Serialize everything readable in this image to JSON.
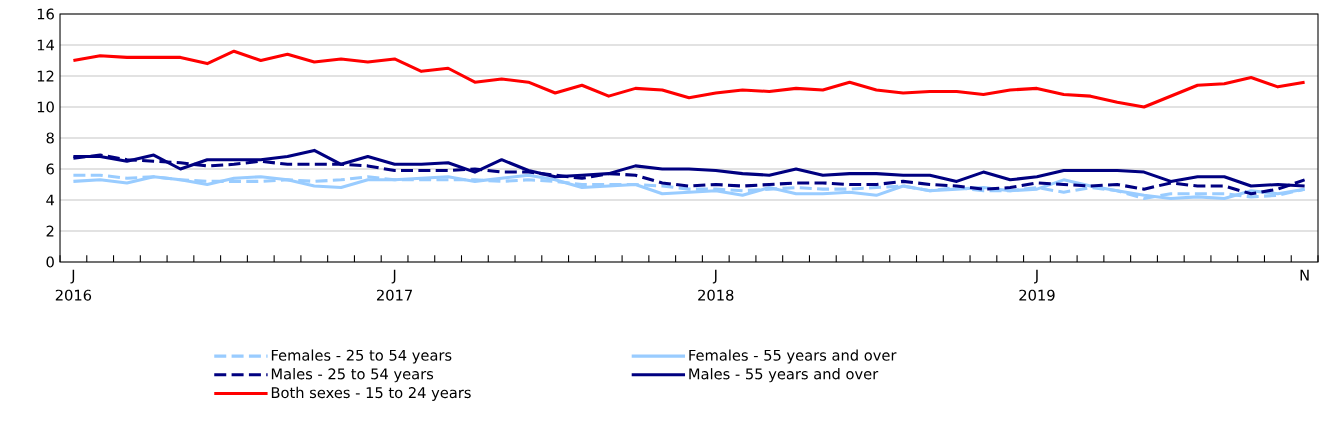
{
  "chart_data": {
    "type": "line",
    "categories": [
      "J 2016",
      null,
      null,
      null,
      null,
      null,
      null,
      null,
      null,
      null,
      null,
      null,
      "J 2017",
      null,
      null,
      null,
      null,
      null,
      null,
      null,
      null,
      null,
      null,
      null,
      "J 2018",
      null,
      null,
      null,
      null,
      null,
      null,
      null,
      null,
      null,
      null,
      null,
      "J 2019",
      null,
      null,
      null,
      null,
      null,
      null,
      null,
      null,
      null,
      "N"
    ],
    "series": [
      {
        "name": "Females - 25 to 54 years",
        "color": "#99ccff",
        "line_style": "dashed",
        "values": [
          5.6,
          5.6,
          5.4,
          5.5,
          5.3,
          5.2,
          5.2,
          5.2,
          5.3,
          5.2,
          5.3,
          5.5,
          5.3,
          5.3,
          5.3,
          5.3,
          5.2,
          5.3,
          5.2,
          5.0,
          5.0,
          5.0,
          4.9,
          4.7,
          4.7,
          4.6,
          4.7,
          4.8,
          4.7,
          4.7,
          4.8,
          4.9,
          4.6,
          4.8,
          4.6,
          4.6,
          4.8,
          4.5,
          4.8,
          4.6,
          4.1,
          4.4,
          4.4,
          4.4,
          4.2,
          4.3,
          4.7
        ]
      },
      {
        "name": "Females - 55 years and over",
        "color": "#99ccff",
        "line_style": "solid",
        "values": [
          5.2,
          5.3,
          5.1,
          5.5,
          5.3,
          5.0,
          5.4,
          5.5,
          5.3,
          4.9,
          4.8,
          5.3,
          5.3,
          5.4,
          5.5,
          5.2,
          5.4,
          5.6,
          5.3,
          4.8,
          4.9,
          5.0,
          4.4,
          4.5,
          4.6,
          4.3,
          4.8,
          4.4,
          4.4,
          4.5,
          4.3,
          4.9,
          4.6,
          4.7,
          4.8,
          4.6,
          4.7,
          5.3,
          4.9,
          4.6,
          4.3,
          4.1,
          4.2,
          4.1,
          4.6,
          4.4,
          4.7
        ]
      },
      {
        "name": "Males - 25 to 54 years",
        "color": "#000080",
        "line_style": "dashed",
        "values": [
          6.7,
          6.9,
          6.6,
          6.5,
          6.4,
          6.2,
          6.3,
          6.5,
          6.3,
          6.3,
          6.3,
          6.2,
          5.9,
          5.9,
          5.9,
          6.0,
          5.8,
          5.8,
          5.6,
          5.4,
          5.7,
          5.6,
          5.1,
          4.9,
          5.0,
          4.9,
          5.0,
          5.1,
          5.1,
          5.0,
          5.0,
          5.2,
          5.0,
          4.9,
          4.7,
          4.8,
          5.1,
          5.0,
          4.9,
          5.0,
          4.7,
          5.1,
          4.9,
          4.9,
          4.4,
          4.7,
          5.3
        ]
      },
      {
        "name": "Males - 55 years and over",
        "color": "#000080",
        "line_style": "solid",
        "values": [
          6.8,
          6.8,
          6.5,
          6.9,
          6.0,
          6.6,
          6.6,
          6.6,
          6.8,
          7.2,
          6.3,
          6.8,
          6.3,
          6.3,
          6.4,
          5.8,
          6.6,
          5.9,
          5.5,
          5.6,
          5.7,
          6.2,
          6.0,
          6.0,
          5.9,
          5.7,
          5.6,
          6.0,
          5.6,
          5.7,
          5.7,
          5.6,
          5.6,
          5.2,
          5.8,
          5.3,
          5.5,
          5.9,
          5.9,
          5.9,
          5.8,
          5.2,
          5.5,
          5.5,
          4.9,
          5.0,
          4.9
        ]
      },
      {
        "name": "Both sexes - 15 to 24 years",
        "color": "#ff0000",
        "line_style": "solid",
        "values": [
          13.0,
          13.3,
          13.2,
          13.2,
          13.2,
          12.8,
          13.6,
          13.0,
          13.4,
          12.9,
          13.1,
          12.9,
          13.1,
          12.3,
          12.5,
          11.6,
          11.8,
          11.6,
          10.9,
          11.4,
          10.7,
          11.2,
          11.1,
          10.6,
          10.9,
          11.1,
          11.0,
          11.2,
          11.1,
          11.6,
          11.1,
          10.9,
          11.0,
          11.0,
          10.8,
          11.1,
          11.2,
          10.8,
          10.7,
          10.3,
          10.0,
          10.7,
          11.4,
          11.5,
          11.9,
          11.3,
          11.6
        ]
      }
    ],
    "ylim": [
      0,
      16
    ],
    "yticks": [
      0,
      2,
      4,
      6,
      8,
      10,
      12,
      14,
      16
    ],
    "grid": "y",
    "legend": "bottom",
    "marker": "none"
  }
}
